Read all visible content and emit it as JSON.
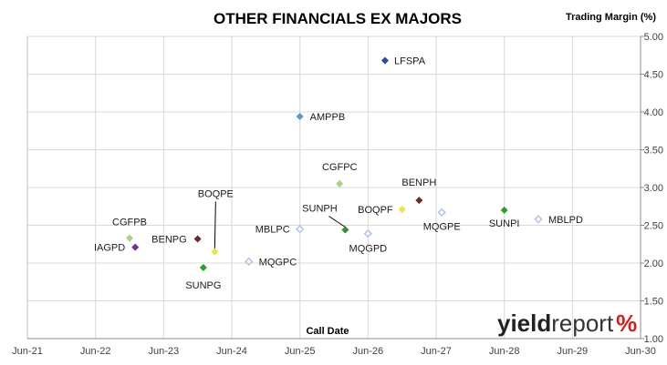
{
  "chart_data": {
    "type": "scatter",
    "title": "OTHER FINANCIALS EX MAJORS",
    "xlabel": "Call Date",
    "ylabel": "Trading Margin (%)",
    "y_axis_side": "right",
    "ylim": [
      1.0,
      5.0
    ],
    "yticks": [
      "1.00",
      "1.50",
      "2.00",
      "2.50",
      "3.00",
      "3.50",
      "4.00",
      "4.50",
      "5.00"
    ],
    "xticks": [
      "Jun-21",
      "Jun-22",
      "Jun-23",
      "Jun-24",
      "Jun-25",
      "Jun-26",
      "Jun-27",
      "Jun-28",
      "Jun-29",
      "Jun-30"
    ],
    "grid": true,
    "points": [
      {
        "label": "LFSPA",
        "x": "2026-09",
        "y": 4.68,
        "color": "#2e4c8f",
        "filled": true
      },
      {
        "label": "AMPPB",
        "x": "2025-06",
        "y": 3.94,
        "color": "#5b9bd5",
        "filled": true
      },
      {
        "label": "CGFPC",
        "x": "2026-01",
        "y": 3.05,
        "color": "#a9d18e",
        "filled": true
      },
      {
        "label": "BENPH",
        "x": "2027-03",
        "y": 2.83,
        "color": "#6b2e2e",
        "filled": true
      },
      {
        "label": "BOQPF",
        "x": "2026-12",
        "y": 2.71,
        "color": "#e6e64d",
        "filled": true
      },
      {
        "label": "MQGPE",
        "x": "2027-07",
        "y": 2.67,
        "color": "#b4c7e7",
        "filled": false
      },
      {
        "label": "SUNPI",
        "x": "2028-06",
        "y": 2.7,
        "color": "#2ca02c",
        "filled": true
      },
      {
        "label": "MBLPD",
        "x": "2028-12",
        "y": 2.58,
        "color": "#b4c7e7",
        "filled": false
      },
      {
        "label": "MBLPC",
        "x": "2025-06",
        "y": 2.45,
        "color": "#b4c7e7",
        "filled": false
      },
      {
        "label": "SUNPH",
        "x": "2026-02",
        "y": 2.44,
        "color": "#3a8a3a",
        "filled": true
      },
      {
        "label": "MQGPD",
        "x": "2026-06",
        "y": 2.39,
        "color": "#b4c7e7",
        "filled": false
      },
      {
        "label": "CGFPB",
        "x": "2022-12",
        "y": 2.33,
        "color": "#a9d18e",
        "filled": true
      },
      {
        "label": "IAGPD",
        "x": "2023-01",
        "y": 2.21,
        "color": "#7030a0",
        "filled": true
      },
      {
        "label": "BENPG",
        "x": "2023-12",
        "y": 2.32,
        "color": "#6b2e2e",
        "filled": true
      },
      {
        "label": "BOQPE",
        "x": "2024-03",
        "y": 2.15,
        "color": "#e6e64d",
        "filled": true
      },
      {
        "label": "MQGPC",
        "x": "2024-09",
        "y": 2.02,
        "color": "#b4c7e7",
        "filled": false
      },
      {
        "label": "SUNPG",
        "x": "2024-01",
        "y": 1.94,
        "color": "#2ca02c",
        "filled": true
      }
    ]
  },
  "branding": {
    "part1": "yield",
    "part2": "report",
    "part3": "%"
  }
}
